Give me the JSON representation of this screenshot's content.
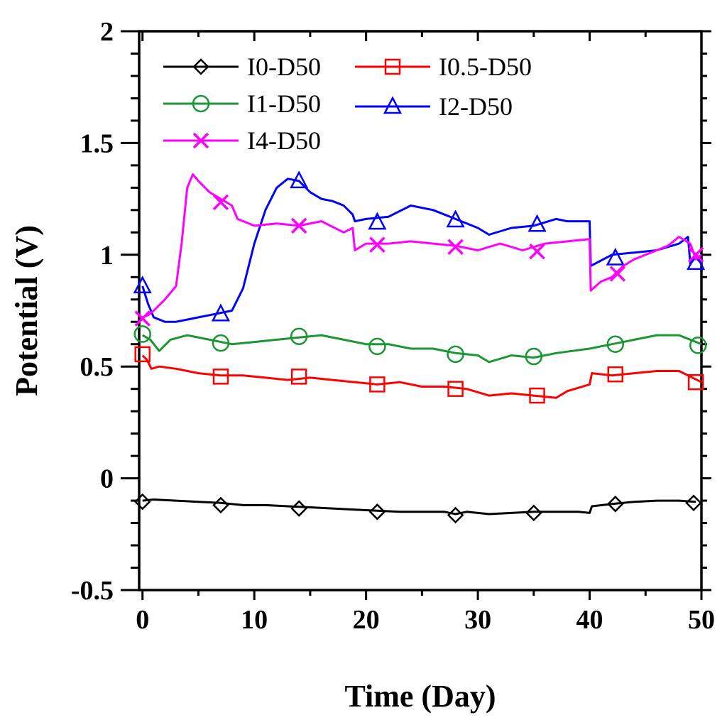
{
  "chart_data": {
    "type": "line",
    "title": "",
    "xlabel": "Time (Day)",
    "ylabel": "Potential (V)",
    "xlim": [
      -0.3,
      50
    ],
    "ylim": [
      -0.5,
      2
    ],
    "xticks": [
      0,
      10,
      20,
      30,
      40,
      50
    ],
    "xtick_labels": [
      "0",
      "10",
      "20",
      "30",
      "40",
      "50"
    ],
    "yticks": [
      -0.5,
      0,
      0.5,
      1,
      1.5,
      2
    ],
    "ytick_labels": [
      "-0.5",
      "0",
      "0.5",
      "1",
      "1.5",
      "2"
    ],
    "grid": false,
    "legend_position": "top-left",
    "series": [
      {
        "name": "I0-D50",
        "color": "#000000",
        "marker": "diamond",
        "x": [
          0,
          1,
          3,
          5,
          7,
          9,
          11,
          13,
          15,
          17,
          19,
          21,
          23,
          25,
          27,
          28,
          29,
          31,
          33,
          35,
          37,
          39,
          40,
          40.2,
          42,
          44,
          46,
          48,
          49.5
        ],
        "y": [
          -0.1,
          -0.095,
          -0.1,
          -0.105,
          -0.11,
          -0.12,
          -0.12,
          -0.125,
          -0.13,
          -0.135,
          -0.14,
          -0.145,
          -0.15,
          -0.15,
          -0.15,
          -0.16,
          -0.15,
          -0.16,
          -0.155,
          -0.15,
          -0.15,
          -0.15,
          -0.155,
          -0.125,
          -0.115,
          -0.105,
          -0.1,
          -0.1,
          -0.105
        ],
        "marker_x": [
          0,
          7,
          14,
          21,
          28,
          35,
          42.3,
          49.3
        ],
        "marker_y": [
          -0.105,
          -0.12,
          -0.135,
          -0.15,
          -0.165,
          -0.155,
          -0.115,
          -0.11
        ]
      },
      {
        "name": "I0.5-D50",
        "color": "#ff0000",
        "marker": "square",
        "x": [
          0,
          0.4,
          0.8,
          1.5,
          3,
          5,
          7,
          9,
          11,
          13,
          15,
          17,
          19,
          21,
          23,
          25,
          27,
          29,
          31,
          33,
          35,
          37,
          38,
          40,
          40.2,
          42,
          44,
          46,
          48,
          50
        ],
        "y": [
          0.55,
          0.53,
          0.49,
          0.5,
          0.49,
          0.47,
          0.46,
          0.46,
          0.45,
          0.44,
          0.45,
          0.44,
          0.43,
          0.42,
          0.43,
          0.41,
          0.41,
          0.4,
          0.37,
          0.38,
          0.37,
          0.36,
          0.39,
          0.42,
          0.47,
          0.46,
          0.47,
          0.48,
          0.48,
          0.43
        ],
        "marker_x": [
          0,
          7,
          14,
          21,
          28,
          35.3,
          42.3,
          49.5
        ],
        "marker_y": [
          0.555,
          0.455,
          0.455,
          0.42,
          0.4,
          0.37,
          0.465,
          0.43
        ]
      },
      {
        "name": "I1-D50",
        "color": "#1a9632",
        "marker": "circle",
        "x": [
          0,
          0.7,
          1.5,
          2.5,
          4,
          6,
          8,
          10,
          12,
          14,
          16,
          18,
          20,
          22,
          24,
          26,
          28,
          30,
          31,
          33,
          35,
          37,
          40,
          42,
          44,
          46,
          48,
          50
        ],
        "y": [
          0.64,
          0.62,
          0.57,
          0.62,
          0.64,
          0.62,
          0.6,
          0.61,
          0.62,
          0.63,
          0.64,
          0.62,
          0.6,
          0.6,
          0.58,
          0.58,
          0.56,
          0.55,
          0.52,
          0.55,
          0.54,
          0.56,
          0.58,
          0.6,
          0.62,
          0.64,
          0.64,
          0.6
        ],
        "marker_x": [
          0,
          7,
          14,
          21,
          28,
          35,
          42.3,
          49.7
        ],
        "marker_y": [
          0.645,
          0.605,
          0.635,
          0.59,
          0.555,
          0.545,
          0.6,
          0.595
        ]
      },
      {
        "name": "I2-D50",
        "color": "#0000ff",
        "marker": "triangle",
        "x": [
          0,
          0.5,
          1,
          2,
          3,
          4,
          5,
          6,
          7,
          8,
          9,
          10,
          11,
          12,
          13,
          14,
          15,
          16,
          17,
          18,
          18.8,
          19,
          20,
          22,
          24,
          26,
          28,
          30,
          31,
          33,
          35,
          37,
          38,
          40,
          40.1,
          42,
          44,
          46,
          48,
          48.8,
          49,
          49.5,
          50
        ],
        "y": [
          0.86,
          0.78,
          0.72,
          0.7,
          0.7,
          0.71,
          0.72,
          0.73,
          0.74,
          0.75,
          0.85,
          1.05,
          1.2,
          1.3,
          1.34,
          1.33,
          1.28,
          1.25,
          1.24,
          1.22,
          1.18,
          1.15,
          1.16,
          1.17,
          1.22,
          1.2,
          1.16,
          1.12,
          1.09,
          1.12,
          1.13,
          1.16,
          1.15,
          1.15,
          0.95,
          1.0,
          1.01,
          1.02,
          1.05,
          1.08,
          0.96,
          0.99,
          0.96
        ],
        "marker_x": [
          0,
          7,
          14,
          21,
          28,
          35.3,
          42.3,
          49.5
        ],
        "marker_y": [
          0.86,
          0.735,
          1.33,
          1.145,
          1.155,
          1.135,
          0.985,
          0.965
        ]
      },
      {
        "name": "I4-D50",
        "color": "#ff00ff",
        "marker": "x",
        "x": [
          0,
          0.5,
          1,
          2,
          3,
          3.5,
          4,
          4.5,
          5,
          6,
          7,
          8,
          8.5,
          10,
          12,
          14,
          16,
          18,
          18.8,
          19,
          20,
          22,
          24,
          26,
          28,
          30,
          32,
          34,
          36,
          38,
          40,
          40.1,
          41,
          42,
          43,
          44,
          46,
          47,
          48,
          49,
          49.5,
          50
        ],
        "y": [
          0.72,
          0.73,
          0.75,
          0.8,
          0.86,
          1.05,
          1.3,
          1.36,
          1.33,
          1.28,
          1.25,
          1.22,
          1.16,
          1.13,
          1.14,
          1.13,
          1.15,
          1.1,
          1.12,
          1.02,
          1.05,
          1.05,
          1.06,
          1.05,
          1.04,
          1.02,
          1.05,
          1.02,
          1.05,
          1.06,
          1.07,
          0.84,
          0.88,
          0.9,
          0.95,
          0.98,
          1.02,
          1.04,
          1.08,
          1.05,
          0.98,
          1.0
        ],
        "marker_x": [
          0,
          7,
          14,
          21,
          28,
          35.3,
          42.5,
          49.5
        ],
        "marker_y": [
          0.715,
          1.235,
          1.13,
          1.045,
          1.035,
          1.015,
          0.915,
          1.0
        ]
      }
    ]
  }
}
